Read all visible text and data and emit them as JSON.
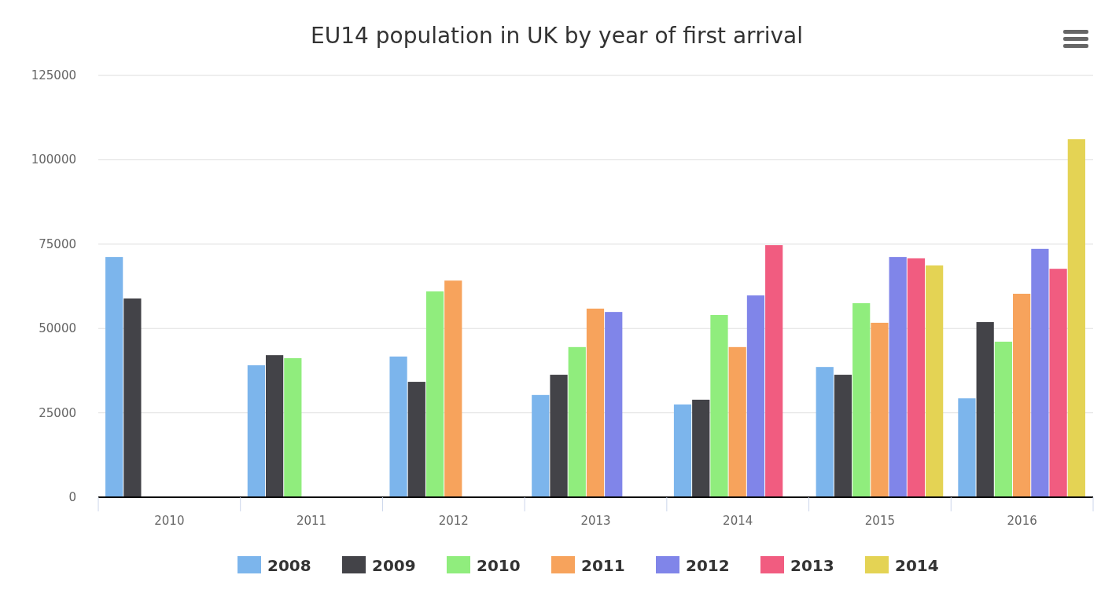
{
  "chart_data": {
    "type": "bar",
    "title": "EU14 population in UK by year of first arrival",
    "categories": [
      "2010",
      "2011",
      "2012",
      "2013",
      "2014",
      "2015",
      "2016"
    ],
    "series": [
      {
        "name": "2008",
        "color": "#7cb5ec",
        "values": [
          71200,
          39100,
          41700,
          30300,
          27500,
          38600,
          29300
        ]
      },
      {
        "name": "2009",
        "color": "#434348",
        "values": [
          58900,
          42100,
          34200,
          36300,
          28900,
          36300,
          51900
        ]
      },
      {
        "name": "2010",
        "color": "#90ed7d",
        "values": [
          null,
          41200,
          61000,
          44500,
          54000,
          57500,
          46100
        ]
      },
      {
        "name": "2011",
        "color": "#f7a35c",
        "values": [
          null,
          null,
          64200,
          55900,
          44500,
          51700,
          60300
        ]
      },
      {
        "name": "2012",
        "color": "#8085e9",
        "values": [
          null,
          null,
          null,
          54900,
          59800,
          71200,
          73600
        ]
      },
      {
        "name": "2013",
        "color": "#f15c80",
        "values": [
          null,
          null,
          null,
          null,
          74700,
          70800,
          67700
        ]
      },
      {
        "name": "2014",
        "color": "#e4d354",
        "values": [
          null,
          null,
          null,
          null,
          null,
          68700,
          106100
        ]
      }
    ],
    "ylim": [
      0,
      125000
    ],
    "yticks": [
      0,
      25000,
      50000,
      75000,
      100000,
      125000
    ],
    "grid": "y",
    "legend": "bottom"
  }
}
